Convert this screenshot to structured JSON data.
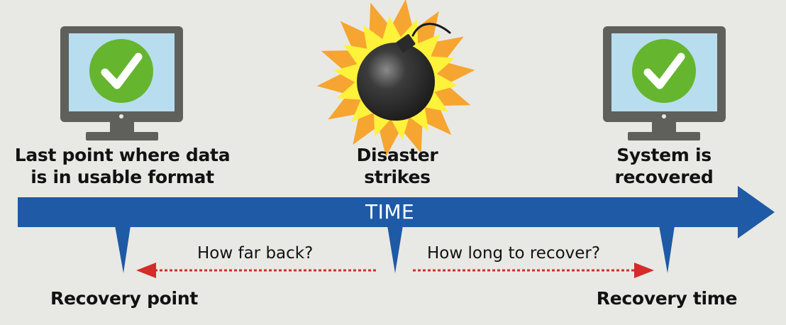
{
  "labels": {
    "last_point": "Last point where data\nis in usable format",
    "disaster": "Disaster\nstrikes",
    "recovered": "System is\nrecovered",
    "time": "TIME",
    "how_far_back": "How far back?",
    "how_long": "How long to recover?",
    "recovery_point": "Recovery point",
    "recovery_time": "Recovery time"
  },
  "colors": {
    "background": "#e8e9e4",
    "timeline": "#1e5aa6",
    "dotted_arrow": "#d42b2b",
    "monitor_frame": "#5f605c",
    "monitor_screen": "#b8ddef",
    "check_circle": "#66b52f",
    "bomb": "#2f2f2f",
    "explosion_outer": "#f6a531",
    "explosion_inner": "#fff23a"
  },
  "icons": {
    "left_monitor": "monitor-check-icon",
    "bomb": "bomb-explosion-icon",
    "right_monitor": "monitor-check-icon"
  }
}
